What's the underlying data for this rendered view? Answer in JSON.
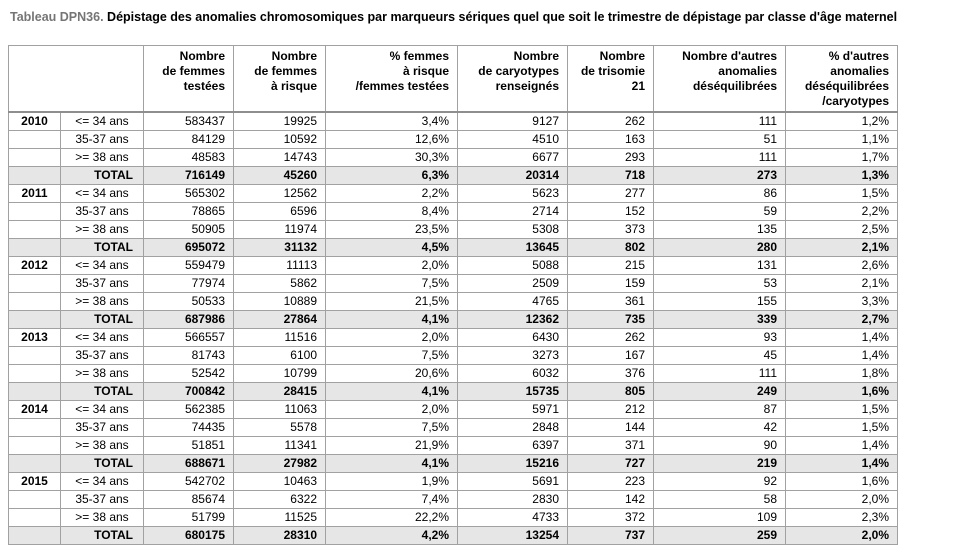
{
  "title": {
    "prefix": "Tableau DPN36.",
    "text": "Dépistage des anomalies chromosomiques par marqueurs sériques quel que soit le trimestre de dépistage par classe d'âge maternel"
  },
  "colors": {
    "title_prefix": "#757575",
    "grid_border": "#a1a1a1",
    "total_row_bg": "#e6e6e6"
  },
  "table": {
    "headers": [
      "Nombre\nde femmes\ntestées",
      "Nombre\nde femmes\nà risque",
      "% femmes\nà risque\n/femmes testées",
      "Nombre\nde caryotypes\nrenseignés",
      "Nombre\nde trisomie\n21",
      "Nombre d'autres\nanomalies\ndéséquilibrées",
      "% d'autres\nanomalies\ndéséquilibrées\n/caryotypes"
    ],
    "total_label": "TOTAL",
    "blocks": [
      {
        "year": "2010",
        "rows": [
          {
            "label": "<= 34 ans",
            "values": [
              "583437",
              "19925",
              "3,4%",
              "9127",
              "262",
              "111",
              "1,2%"
            ]
          },
          {
            "label": "35-37 ans",
            "values": [
              "84129",
              "10592",
              "12,6%",
              "4510",
              "163",
              "51",
              "1,1%"
            ]
          },
          {
            "label": ">= 38 ans",
            "values": [
              "48583",
              "14743",
              "30,3%",
              "6677",
              "293",
              "111",
              "1,7%"
            ]
          },
          {
            "label": "TOTAL",
            "values": [
              "716149",
              "45260",
              "6,3%",
              "20314",
              "718",
              "273",
              "1,3%"
            ]
          }
        ]
      },
      {
        "year": "2011",
        "rows": [
          {
            "label": "<= 34 ans",
            "values": [
              "565302",
              "12562",
              "2,2%",
              "5623",
              "277",
              "86",
              "1,5%"
            ]
          },
          {
            "label": "35-37 ans",
            "values": [
              "78865",
              "6596",
              "8,4%",
              "2714",
              "152",
              "59",
              "2,2%"
            ]
          },
          {
            "label": ">= 38 ans",
            "values": [
              "50905",
              "11974",
              "23,5%",
              "5308",
              "373",
              "135",
              "2,5%"
            ]
          },
          {
            "label": "TOTAL",
            "values": [
              "695072",
              "31132",
              "4,5%",
              "13645",
              "802",
              "280",
              "2,1%"
            ]
          }
        ]
      },
      {
        "year": "2012",
        "rows": [
          {
            "label": "<= 34 ans",
            "values": [
              "559479",
              "11113",
              "2,0%",
              "5088",
              "215",
              "131",
              "2,6%"
            ]
          },
          {
            "label": "35-37 ans",
            "values": [
              "77974",
              "5862",
              "7,5%",
              "2509",
              "159",
              "53",
              "2,1%"
            ]
          },
          {
            "label": ">= 38 ans",
            "values": [
              "50533",
              "10889",
              "21,5%",
              "4765",
              "361",
              "155",
              "3,3%"
            ]
          },
          {
            "label": "TOTAL",
            "values": [
              "687986",
              "27864",
              "4,1%",
              "12362",
              "735",
              "339",
              "2,7%"
            ]
          }
        ]
      },
      {
        "year": "2013",
        "rows": [
          {
            "label": "<= 34 ans",
            "values": [
              "566557",
              "11516",
              "2,0%",
              "6430",
              "262",
              "93",
              "1,4%"
            ]
          },
          {
            "label": "35-37 ans",
            "values": [
              "81743",
              "6100",
              "7,5%",
              "3273",
              "167",
              "45",
              "1,4%"
            ]
          },
          {
            "label": ">= 38 ans",
            "values": [
              "52542",
              "10799",
              "20,6%",
              "6032",
              "376",
              "111",
              "1,8%"
            ]
          },
          {
            "label": "TOTAL",
            "values": [
              "700842",
              "28415",
              "4,1%",
              "15735",
              "805",
              "249",
              "1,6%"
            ]
          }
        ]
      },
      {
        "year": "2014",
        "rows": [
          {
            "label": "<= 34 ans",
            "values": [
              "562385",
              "11063",
              "2,0%",
              "5971",
              "212",
              "87",
              "1,5%"
            ]
          },
          {
            "label": "35-37 ans",
            "values": [
              "74435",
              "5578",
              "7,5%",
              "2848",
              "144",
              "42",
              "1,5%"
            ]
          },
          {
            "label": ">= 38 ans",
            "values": [
              "51851",
              "11341",
              "21,9%",
              "6397",
              "371",
              "90",
              "1,4%"
            ]
          },
          {
            "label": "TOTAL",
            "values": [
              "688671",
              "27982",
              "4,1%",
              "15216",
              "727",
              "219",
              "1,4%"
            ]
          }
        ]
      },
      {
        "year": "2015",
        "rows": [
          {
            "label": "<= 34 ans",
            "values": [
              "542702",
              "10463",
              "1,9%",
              "5691",
              "223",
              "92",
              "1,6%"
            ]
          },
          {
            "label": "35-37 ans",
            "values": [
              "85674",
              "6322",
              "7,4%",
              "2830",
              "142",
              "58",
              "2,0%"
            ]
          },
          {
            "label": ">= 38 ans",
            "values": [
              "51799",
              "11525",
              "22,2%",
              "4733",
              "372",
              "109",
              "2,3%"
            ]
          },
          {
            "label": "TOTAL",
            "values": [
              "680175",
              "28310",
              "4,2%",
              "13254",
              "737",
              "259",
              "2,0%"
            ]
          }
        ]
      }
    ]
  }
}
